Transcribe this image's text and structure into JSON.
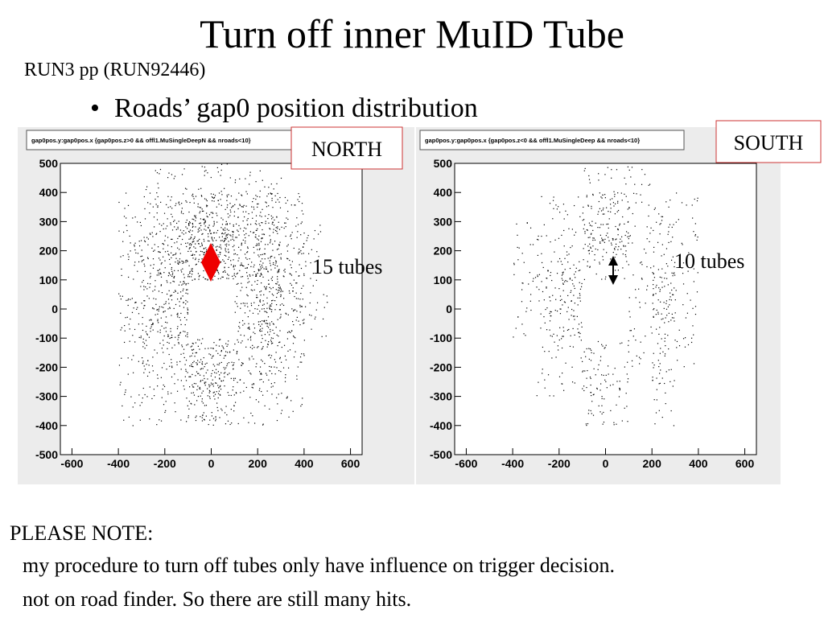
{
  "slide": {
    "title": "Turn off inner MuID Tube",
    "subtitle": "RUN3 pp (RUN92446)",
    "bullet": "Roads’ gap0 position distribution",
    "note_heading": "PLEASE NOTE:",
    "note_lines": [
      "my procedure to turn off tubes only have influence on trigger decision.",
      "not on road finder. So there are still many hits."
    ]
  },
  "chart_data": [
    {
      "type": "density",
      "title": "gap0pos.y:gap0pos.x {gap0pos.z>0 && offl1.MuSingleDeepN && nroads<10}",
      "label": "NORTH",
      "annotation": "15 tubes",
      "xlim": [
        -650,
        650
      ],
      "ylim": [
        -500,
        500
      ],
      "xticks": [
        -600,
        -400,
        -200,
        0,
        200,
        400,
        600
      ],
      "yticks": [
        -500,
        -400,
        -300,
        -200,
        -100,
        0,
        100,
        200,
        300,
        400,
        500
      ],
      "x_bins": [
        -600,
        -500,
        -400,
        -300,
        -200,
        -100,
        0,
        100,
        200,
        300,
        400,
        500,
        600
      ],
      "y_bins": [
        500,
        400,
        300,
        200,
        100,
        0,
        -100,
        -200,
        -300,
        -400,
        -500
      ],
      "color": "#000000",
      "counts": [
        [
          0,
          0,
          0,
          1,
          1,
          1,
          1,
          1,
          1,
          0,
          0,
          0
        ],
        [
          0,
          0,
          1,
          2,
          3,
          5,
          5,
          4,
          4,
          2,
          0,
          0
        ],
        [
          0,
          0,
          2,
          3,
          4,
          9,
          9,
          5,
          6,
          3,
          1,
          0
        ],
        [
          0,
          0,
          2,
          4,
          6,
          7,
          7,
          5,
          7,
          3,
          1,
          0
        ],
        [
          0,
          0,
          2,
          4,
          6,
          0,
          0,
          4,
          7,
          3,
          1,
          0
        ],
        [
          0,
          0,
          2,
          4,
          5,
          0,
          0,
          3,
          6,
          3,
          1,
          0
        ],
        [
          0,
          0,
          1,
          3,
          3,
          5,
          5,
          3,
          4,
          2,
          0,
          0
        ],
        [
          0,
          0,
          1,
          2,
          2,
          6,
          6,
          2,
          3,
          1,
          0,
          0
        ],
        [
          0,
          0,
          1,
          1,
          1,
          3,
          3,
          1,
          1,
          1,
          0,
          0
        ],
        [
          0,
          0,
          0,
          0,
          0,
          0,
          0,
          0,
          0,
          0,
          0,
          0
        ]
      ]
    },
    {
      "type": "density",
      "title": "gap0pos.y:gap0pos.x {gap0pos.z<0 && offl1.MuSingleDeep && nroads<10}",
      "label": "SOUTH",
      "annotation": "10 tubes",
      "xlim": [
        -650,
        650
      ],
      "ylim": [
        -500,
        500
      ],
      "xticks": [
        -600,
        -400,
        -200,
        0,
        200,
        400,
        600
      ],
      "yticks": [
        -500,
        -400,
        -300,
        -200,
        -100,
        0,
        100,
        200,
        300,
        400,
        500
      ],
      "x_bins": [
        -600,
        -500,
        -400,
        -300,
        -200,
        -100,
        0,
        100,
        200,
        300,
        400,
        500,
        600
      ],
      "y_bins": [
        500,
        400,
        300,
        200,
        100,
        0,
        -100,
        -200,
        -300,
        -400,
        -500
      ],
      "color": "#000000",
      "counts": [
        [
          0,
          0,
          0,
          0,
          0,
          1,
          1,
          1,
          0,
          0,
          0,
          0
        ],
        [
          0,
          0,
          0,
          1,
          1,
          3,
          3,
          1,
          1,
          1,
          0,
          0
        ],
        [
          0,
          0,
          1,
          1,
          1,
          5,
          5,
          1,
          2,
          1,
          0,
          0
        ],
        [
          0,
          0,
          1,
          2,
          3,
          2,
          2,
          1,
          3,
          1,
          0,
          0
        ],
        [
          0,
          0,
          1,
          2,
          4,
          0,
          0,
          1,
          4,
          1,
          0,
          0
        ],
        [
          0,
          0,
          1,
          2,
          3,
          0,
          0,
          1,
          3,
          1,
          0,
          0
        ],
        [
          0,
          0,
          0,
          1,
          1,
          2,
          1,
          1,
          2,
          1,
          0,
          0
        ],
        [
          0,
          0,
          0,
          1,
          1,
          3,
          2,
          0,
          2,
          0,
          0,
          0
        ],
        [
          0,
          0,
          0,
          0,
          0,
          2,
          1,
          0,
          1,
          0,
          0,
          0
        ],
        [
          0,
          0,
          0,
          0,
          0,
          0,
          0,
          0,
          0,
          0,
          0,
          0
        ]
      ]
    }
  ]
}
